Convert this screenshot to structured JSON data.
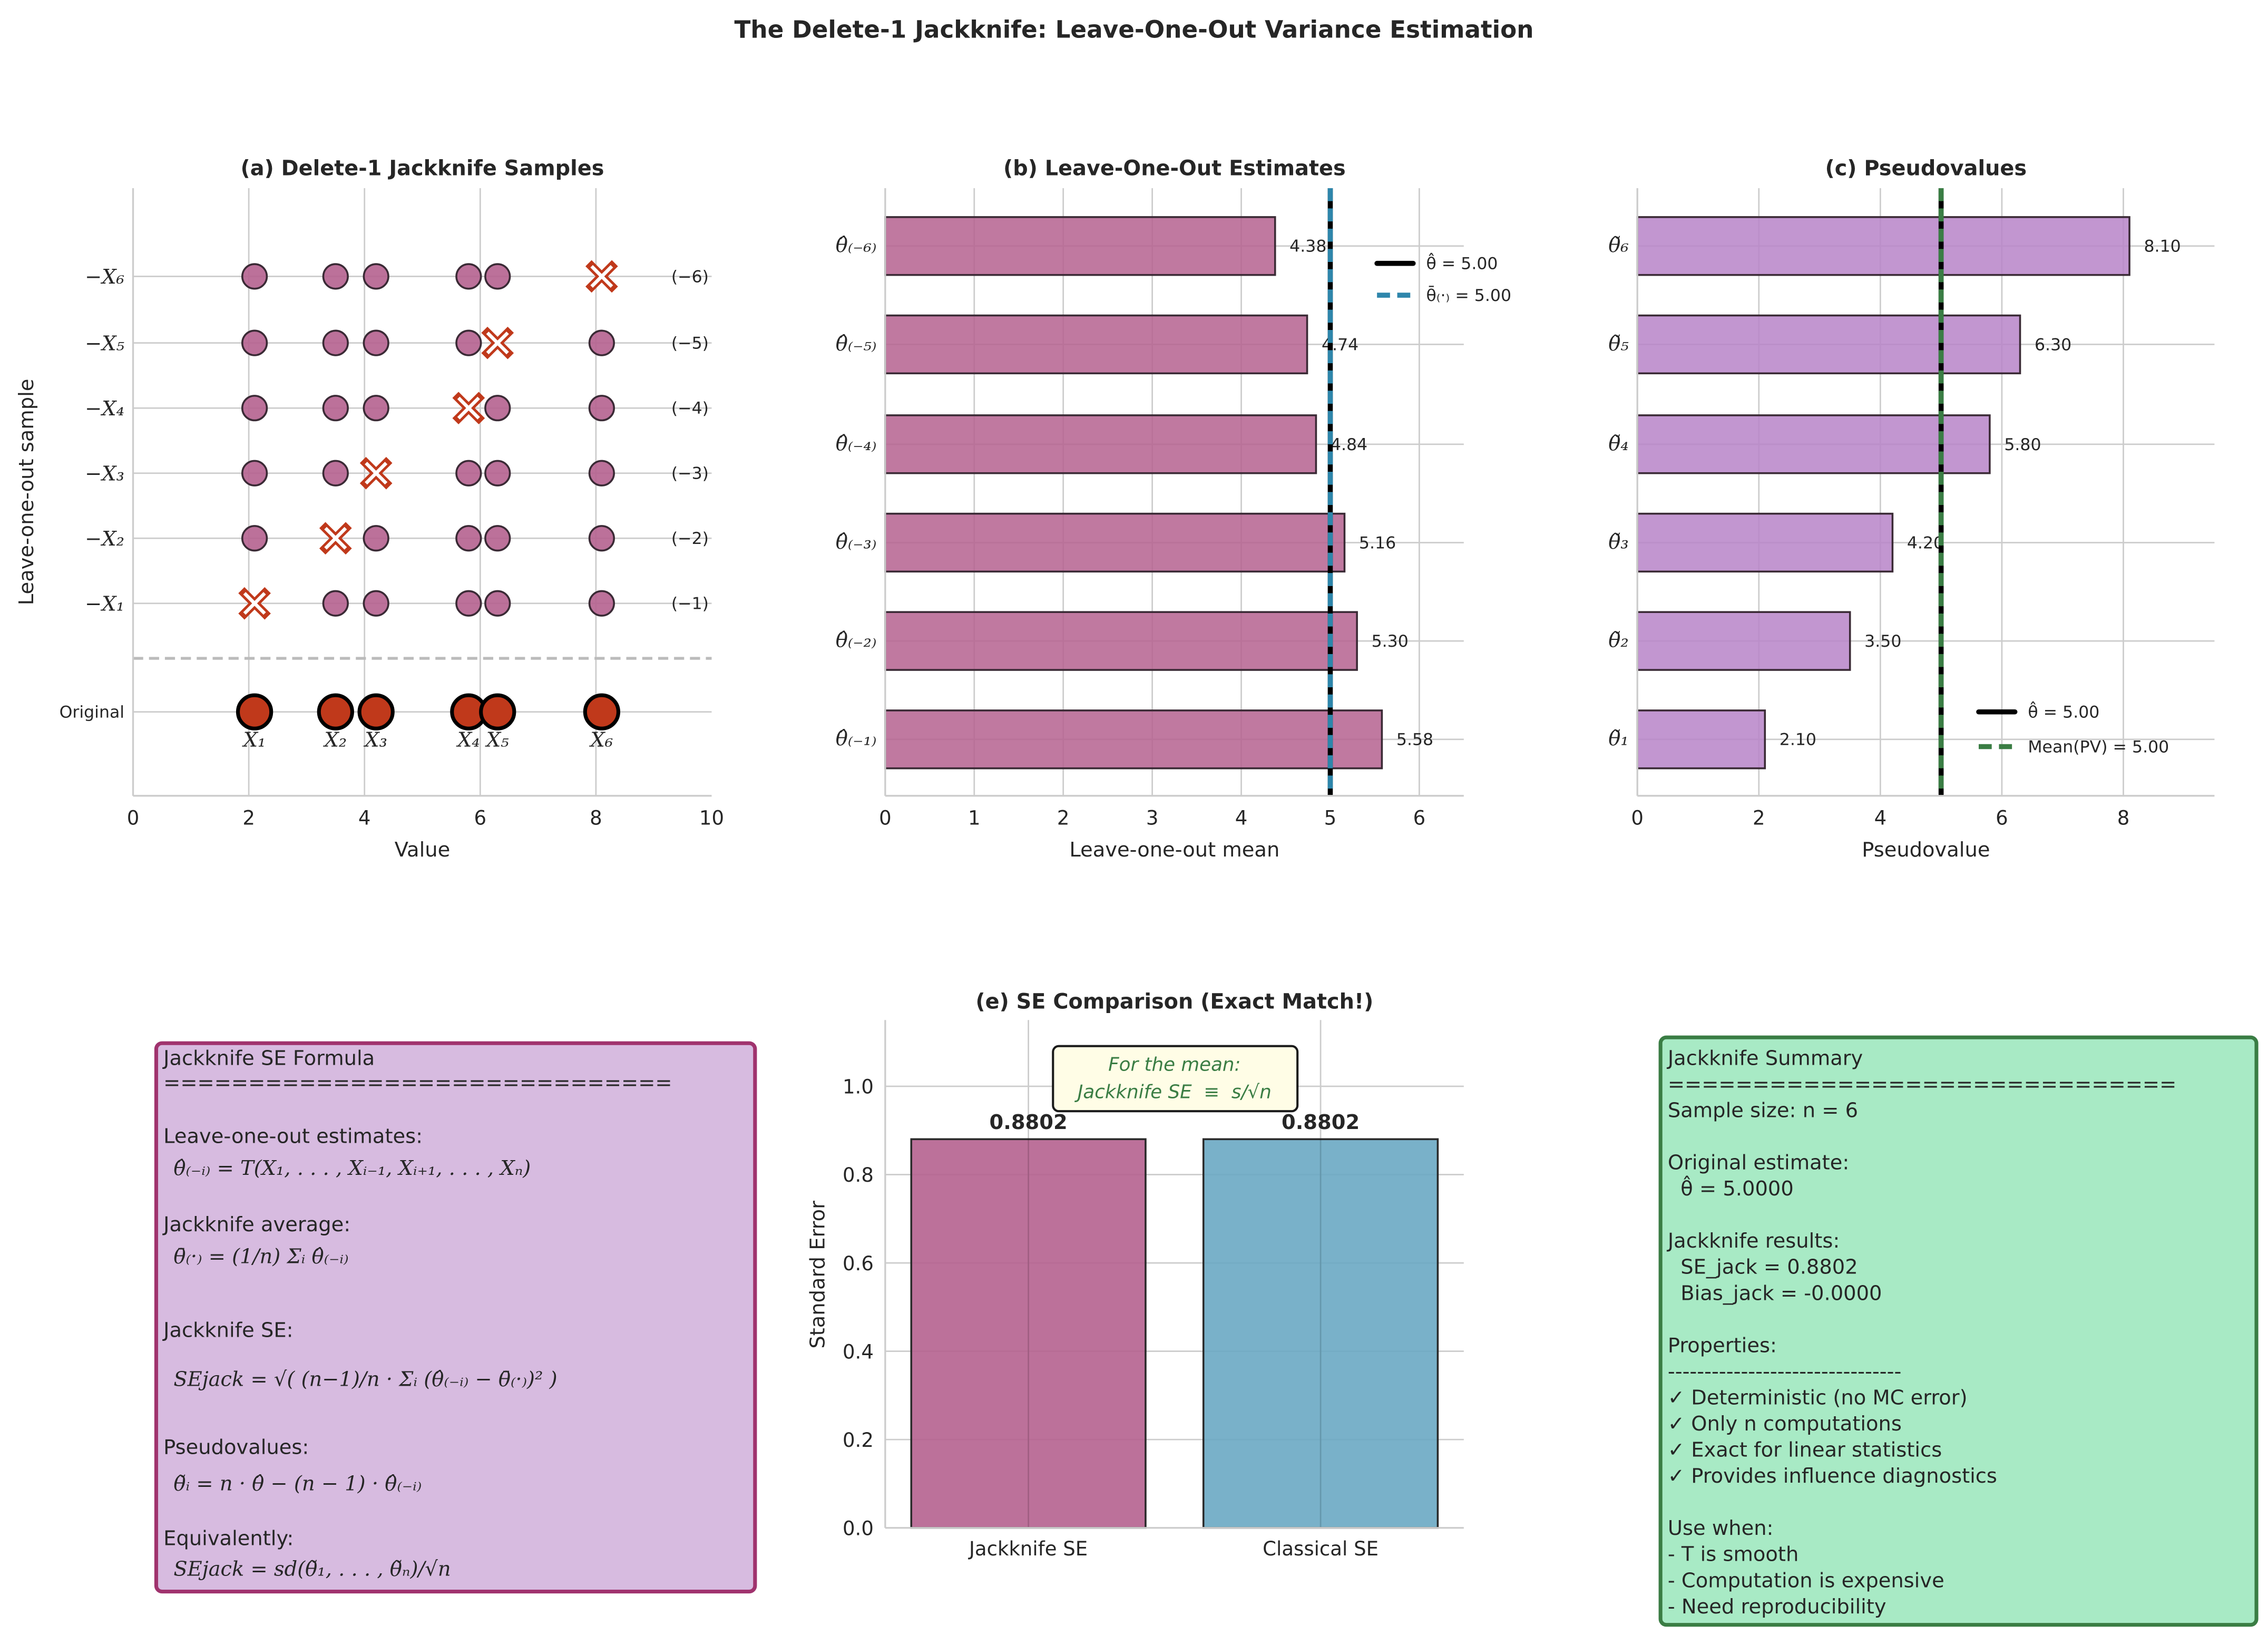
{
  "figure_title": "The Delete-1 Jackknife: Leave-One-Out Variance Estimation",
  "chart_data": [
    {
      "id": "a",
      "type": "scatter",
      "title": "(a) Delete-1 Jackknife Samples",
      "xlabel": "Value",
      "ylabel": "Leave-one-out sample",
      "xlim": [
        0,
        10
      ],
      "xticks": [
        "0",
        "2",
        "4",
        "6",
        "8",
        "10"
      ],
      "grid": true,
      "values": [
        2.1,
        3.5,
        4.2,
        5.8,
        6.3,
        8.1
      ],
      "point_labels": [
        "X₁",
        "X₂",
        "X₃",
        "X₄",
        "X₅",
        "X₆"
      ],
      "original_label": "Original",
      "row_labels": [
        "−X₁",
        "−X₂",
        "−X₃",
        "−X₄",
        "−X₅",
        "−X₆"
      ],
      "row_right_labels": [
        "(−1)",
        "(−2)",
        "(−3)",
        "(−4)",
        "(−5)",
        "(−6)"
      ],
      "left_out_marker": "x-mark",
      "colors": {
        "kept": "#b5628f",
        "original": "#c0391b",
        "left_out": "#c0391b"
      }
    },
    {
      "id": "b",
      "type": "bar",
      "orientation": "horizontal",
      "title": "(b) Leave-One-Out Estimates",
      "xlabel": "Leave-one-out mean",
      "xlim": [
        0,
        6.5
      ],
      "xticks": [
        "0",
        "1",
        "2",
        "3",
        "4",
        "5",
        "6"
      ],
      "grid": true,
      "categories": [
        "θ̂₍₋₁₎",
        "θ̂₍₋₂₎",
        "θ̂₍₋₃₎",
        "θ̂₍₋₄₎",
        "θ̂₍₋₅₎",
        "θ̂₍₋₆₎"
      ],
      "values": [
        5.58,
        5.3,
        5.16,
        4.84,
        4.74,
        4.38
      ],
      "value_labels": [
        "5.58",
        "5.30",
        "5.16",
        "4.84",
        "4.74",
        "4.38"
      ],
      "reference_lines": [
        {
          "value": 5.0,
          "label": "θ̂ = 5.00",
          "style": "solid",
          "color": "#000000"
        },
        {
          "value": 5.0,
          "label": "θ̄₍·₎ = 5.00",
          "style": "dashed",
          "color": "#2e86ab"
        }
      ],
      "legend_position": "lower-right",
      "bar_color": "#b5628f"
    },
    {
      "id": "c",
      "type": "bar",
      "orientation": "horizontal",
      "title": "(c) Pseudovalues",
      "xlabel": "Pseudovalue",
      "xlim": [
        0,
        9.5
      ],
      "xticks": [
        "0",
        "2",
        "4",
        "6",
        "8"
      ],
      "grid": true,
      "categories": [
        "θ̃₁",
        "θ̃₂",
        "θ̃₃",
        "θ̃₄",
        "θ̃₅",
        "θ̃₆"
      ],
      "values": [
        2.1,
        3.5,
        4.2,
        5.8,
        6.3,
        8.1
      ],
      "value_labels": [
        "2.10",
        "3.50",
        "4.20",
        "5.80",
        "6.30",
        "8.10"
      ],
      "reference_lines": [
        {
          "value": 5.0,
          "label": "θ̂ = 5.00",
          "style": "solid",
          "color": "#000000"
        },
        {
          "value": 5.0,
          "label": "Mean(PV) = 5.00",
          "style": "dashed",
          "color": "#3a7d44"
        }
      ],
      "legend_position": "upper-right",
      "bar_color": "#b784c8"
    },
    {
      "id": "e",
      "type": "bar",
      "title": "(e) SE Comparison (Exact Match!)",
      "ylabel": "Standard Error",
      "ylim": [
        0,
        1.15
      ],
      "yticks": [
        "0.0",
        "0.2",
        "0.4",
        "0.6",
        "0.8",
        "1.0"
      ],
      "grid": true,
      "categories": [
        "Jackknife SE",
        "Classical SE"
      ],
      "values": [
        0.8802,
        0.8802
      ],
      "value_labels": [
        "0.8802",
        "0.8802"
      ],
      "bar_colors": [
        "#b5628f",
        "#6aa8c3"
      ],
      "annotation": [
        "For the mean:",
        "Jackknife SE  ≡  s/√n"
      ]
    }
  ],
  "formula_box": {
    "border_color": "#a0336e",
    "background": "#d7bbe0",
    "lines": [
      "Jackknife SE Formula",
      "==============================",
      "Leave-one-out estimates:",
      "θ̂₍₋ᵢ₎ = T(X₁, . . . , Xᵢ₋₁, Xᵢ₊₁, . . . , Xₙ)",
      "Jackknife average:",
      "θ̄₍·₎ = (1/n) Σᵢ θ̂₍₋ᵢ₎",
      "Jackknife SE:",
      "SEjack = √( (n−1)/n · Σᵢ (θ̂₍₋ᵢ₎ − θ̄₍·₎)² )",
      "Pseudovalues:",
      "θ̃ᵢ = n · θ̂ − (n − 1) · θ̂₍₋ᵢ₎",
      "Equivalently:",
      "SEjack = sd(θ̃₁, . . . , θ̃ₙ)/√n"
    ]
  },
  "summary_box": {
    "border_color": "#3a7d44",
    "background": "#a8eac5",
    "lines": [
      "Jackknife Summary",
      "==============================",
      "Sample size: n = 6",
      "",
      "Original estimate:",
      "  θ̂ = 5.0000",
      "",
      "Jackknife results:",
      "  SE_jack = 0.8802",
      "  Bias_jack = -0.0000",
      "",
      "Properties:",
      "--------------------------------",
      "✓ Deterministic (no MC error)",
      "✓ Only n computations",
      "✓ Exact for linear statistics",
      "✓ Provides influence diagnostics",
      "",
      "Use when:",
      "- T is smooth",
      "- Computation is expensive",
      "- Need reproducibility"
    ]
  }
}
